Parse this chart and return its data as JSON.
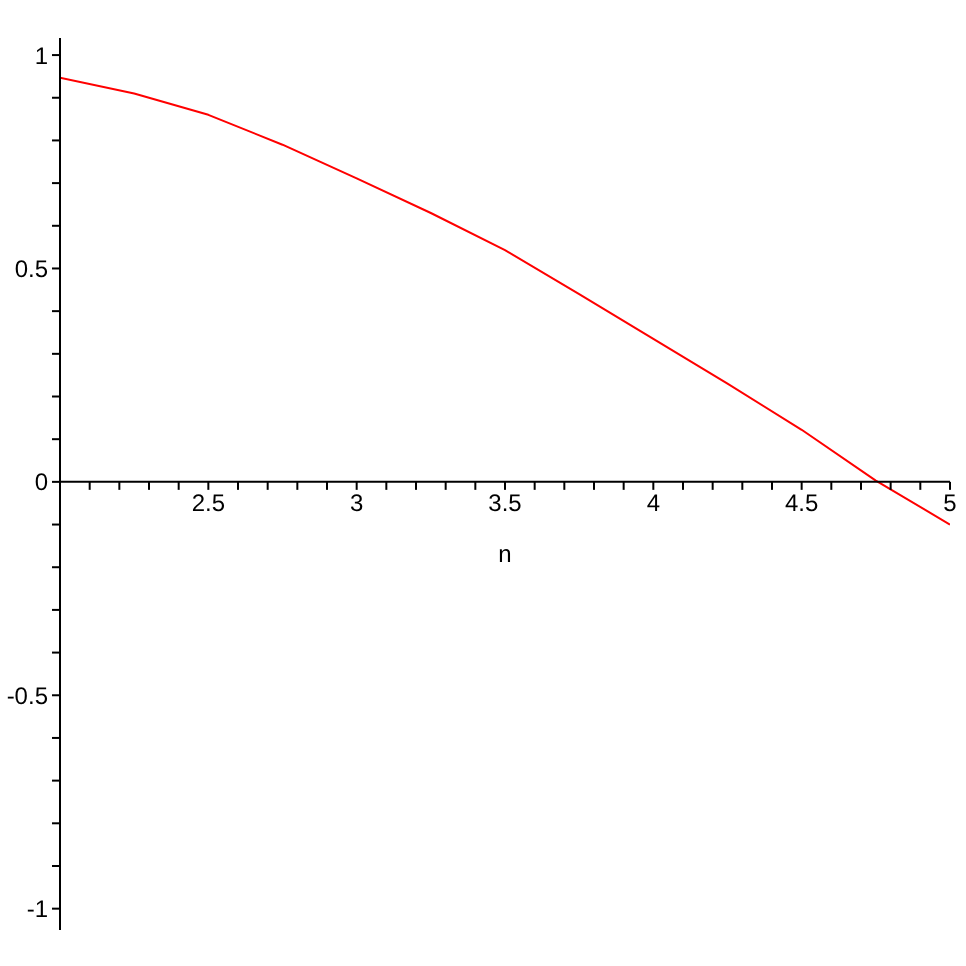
{
  "chart_data": {
    "type": "line",
    "xlabel": "n",
    "marker": "none",
    "x": [
      2,
      2.25,
      2.5,
      2.75,
      3,
      3.25,
      3.5,
      3.75,
      4,
      4.25,
      4.5,
      4.75,
      5
    ],
    "series": [
      {
        "color": "#ff0000",
        "values": [
          0.947,
          0.91,
          0.86,
          0.79,
          0.711,
          0.63,
          0.543,
          0.44,
          0.335,
          0.23,
          0.122,
          0.003,
          -0.1
        ]
      }
    ],
    "xlim": [
      2,
      5
    ],
    "ylim": [
      -1.05,
      1.04
    ],
    "xticks": [
      {
        "value": 2.1,
        "label": null
      },
      {
        "value": 2.2,
        "label": null
      },
      {
        "value": 2.3,
        "label": null
      },
      {
        "value": 2.4,
        "label": null
      },
      2.5,
      {
        "value": 2.6,
        "label": null
      },
      {
        "value": 2.7,
        "label": null
      },
      {
        "value": 2.8,
        "label": null
      },
      {
        "value": 2.9,
        "label": null
      },
      3,
      {
        "value": 3.1,
        "label": null
      },
      {
        "value": 3.2,
        "label": null
      },
      {
        "value": 3.3,
        "label": null
      },
      {
        "value": 3.4,
        "label": null
      },
      3.5,
      {
        "value": 3.6,
        "label": null
      },
      {
        "value": 3.7,
        "label": null
      },
      {
        "value": 3.8,
        "label": null
      },
      {
        "value": 3.9,
        "label": null
      },
      4,
      {
        "value": 4.1,
        "label": null
      },
      {
        "value": 4.2,
        "label": null
      },
      {
        "value": 4.3,
        "label": null
      },
      {
        "value": 4.4,
        "label": null
      },
      4.5,
      {
        "value": 4.6,
        "label": null
      },
      {
        "value": 4.7,
        "label": null
      },
      {
        "value": 4.8,
        "label": null
      },
      {
        "value": 4.9,
        "label": null
      },
      5
    ],
    "yticks": [
      -1,
      {
        "value": -0.9,
        "label": null
      },
      {
        "value": -0.8,
        "label": null
      },
      {
        "value": -0.7,
        "label": null
      },
      {
        "value": -0.6,
        "label": null
      },
      -0.5,
      {
        "value": -0.4,
        "label": null
      },
      {
        "value": -0.3,
        "label": null
      },
      {
        "value": -0.2,
        "label": null
      },
      {
        "value": -0.1,
        "label": null
      },
      0,
      {
        "value": 0.1,
        "label": null
      },
      {
        "value": 0.2,
        "label": null
      },
      {
        "value": 0.3,
        "label": null
      },
      {
        "value": 0.4,
        "label": null
      },
      0.5,
      {
        "value": 0.6,
        "label": null
      },
      {
        "value": 0.7,
        "label": null
      },
      {
        "value": 0.8,
        "label": null
      },
      {
        "value": 0.9,
        "label": null
      },
      1
    ]
  }
}
